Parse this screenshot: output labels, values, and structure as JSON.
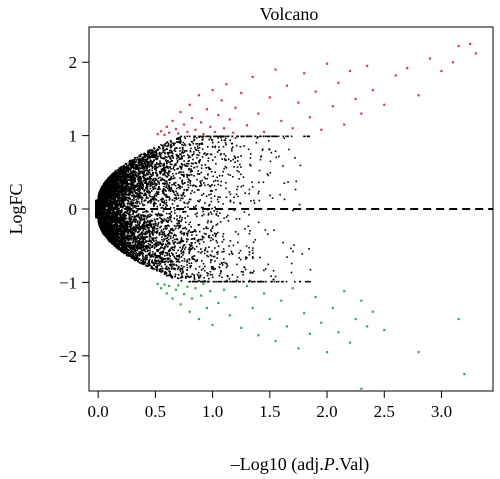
{
  "chart_data": {
    "type": "scatter",
    "title": "Volcano",
    "xlabel_prefix": "–Log10 (adj.",
    "xlabel_italic": "P",
    "xlabel_suffix": ".Val)",
    "ylabel": "LogFC",
    "xlim": [
      -0.08,
      3.45
    ],
    "ylim": [
      -2.48,
      2.48
    ],
    "x_ticks": [
      0.0,
      0.5,
      1.0,
      1.5,
      2.0,
      2.5,
      3.0
    ],
    "x_tick_labels": [
      "0.0",
      "0.5",
      "1.0",
      "1.5",
      "2.0",
      "2.5",
      "3.0"
    ],
    "y_ticks": [
      -2,
      -1,
      0,
      1,
      2
    ],
    "y_tick_labels": [
      "−2",
      "−1",
      "0",
      "1",
      "2"
    ],
    "reference_line": {
      "y": 0,
      "style": "dashed"
    },
    "grid": false,
    "colors": {
      "up": "#e03a3a",
      "down": "#27b34a",
      "ns": "#000000"
    },
    "series": [
      {
        "role": "up",
        "color": "#e03a3a",
        "points": [
          [
            0.52,
            1.02
          ],
          [
            0.55,
            1.06
          ],
          [
            0.58,
            1.01
          ],
          [
            0.6,
            1.12
          ],
          [
            0.62,
            1.04
          ],
          [
            0.65,
            1.2
          ],
          [
            0.68,
            1.09
          ],
          [
            0.7,
            1.03
          ],
          [
            0.72,
            1.32
          ],
          [
            0.75,
            1.15
          ],
          [
            0.78,
            1.05
          ],
          [
            0.8,
            1.42
          ],
          [
            0.82,
            1.24
          ],
          [
            0.85,
            1.08
          ],
          [
            0.88,
            1.55
          ],
          [
            0.9,
            1.18
          ],
          [
            0.92,
            1.02
          ],
          [
            0.95,
            1.36
          ],
          [
            0.98,
            1.12
          ],
          [
            1.0,
            1.62
          ],
          [
            1.02,
            1.05
          ],
          [
            1.05,
            1.28
          ],
          [
            1.08,
            1.48
          ],
          [
            1.1,
            1.1
          ],
          [
            1.12,
            1.7
          ],
          [
            1.15,
            1.22
          ],
          [
            1.18,
            1.04
          ],
          [
            1.2,
            1.38
          ],
          [
            1.25,
            1.58
          ],
          [
            1.3,
            1.14
          ],
          [
            1.35,
            1.8
          ],
          [
            1.4,
            1.3
          ],
          [
            1.45,
            1.05
          ],
          [
            1.5,
            1.52
          ],
          [
            1.55,
            1.9
          ],
          [
            1.6,
            1.2
          ],
          [
            1.65,
            1.68
          ],
          [
            1.7,
            1.1
          ],
          [
            1.75,
            1.45
          ],
          [
            1.8,
            1.85
          ],
          [
            1.85,
            1.25
          ],
          [
            1.9,
            1.6
          ],
          [
            1.95,
            1.08
          ],
          [
            2.0,
            1.98
          ],
          [
            2.05,
            1.4
          ],
          [
            2.1,
            1.72
          ],
          [
            2.15,
            1.15
          ],
          [
            2.2,
            1.88
          ],
          [
            2.25,
            1.5
          ],
          [
            2.3,
            1.3
          ],
          [
            2.35,
            1.95
          ],
          [
            2.4,
            1.62
          ],
          [
            2.5,
            1.42
          ],
          [
            2.6,
            1.82
          ],
          [
            2.7,
            1.92
          ],
          [
            2.8,
            1.55
          ],
          [
            2.9,
            2.05
          ],
          [
            3.0,
            1.88
          ],
          [
            3.1,
            2.0
          ],
          [
            3.15,
            2.22
          ],
          [
            3.25,
            2.25
          ],
          [
            3.3,
            2.12
          ]
        ]
      },
      {
        "role": "down",
        "color": "#27b34a",
        "points": [
          [
            0.52,
            -1.02
          ],
          [
            0.55,
            -1.08
          ],
          [
            0.58,
            -1.03
          ],
          [
            0.6,
            -1.15
          ],
          [
            0.62,
            -1.05
          ],
          [
            0.65,
            -1.22
          ],
          [
            0.68,
            -1.1
          ],
          [
            0.7,
            -1.04
          ],
          [
            0.72,
            -1.3
          ],
          [
            0.75,
            -1.16
          ],
          [
            0.78,
            -1.06
          ],
          [
            0.8,
            -1.4
          ],
          [
            0.82,
            -1.22
          ],
          [
            0.85,
            -1.08
          ],
          [
            0.88,
            -1.5
          ],
          [
            0.9,
            -1.18
          ],
          [
            0.92,
            -1.02
          ],
          [
            0.95,
            -1.35
          ],
          [
            0.98,
            -1.12
          ],
          [
            1.0,
            -1.58
          ],
          [
            1.05,
            -1.28
          ],
          [
            1.1,
            -1.1
          ],
          [
            1.15,
            -1.45
          ],
          [
            1.2,
            -1.2
          ],
          [
            1.25,
            -1.62
          ],
          [
            1.3,
            -1.05
          ],
          [
            1.35,
            -1.35
          ],
          [
            1.4,
            -1.72
          ],
          [
            1.45,
            -1.15
          ],
          [
            1.5,
            -1.5
          ],
          [
            1.55,
            -1.8
          ],
          [
            1.6,
            -1.25
          ],
          [
            1.65,
            -1.6
          ],
          [
            1.7,
            -1.08
          ],
          [
            1.75,
            -1.9
          ],
          [
            1.8,
            -1.42
          ],
          [
            1.85,
            -1.7
          ],
          [
            1.9,
            -1.2
          ],
          [
            1.95,
            -1.55
          ],
          [
            2.0,
            -1.95
          ],
          [
            2.05,
            -1.35
          ],
          [
            2.1,
            -1.68
          ],
          [
            2.15,
            -1.12
          ],
          [
            2.2,
            -1.82
          ],
          [
            2.25,
            -1.5
          ],
          [
            2.3,
            -1.25
          ],
          [
            2.35,
            -1.6
          ],
          [
            2.4,
            -1.4
          ],
          [
            2.5,
            -1.65
          ],
          [
            2.8,
            -1.95
          ],
          [
            3.15,
            -1.5
          ],
          [
            3.2,
            -2.25
          ],
          [
            2.3,
            -2.45
          ]
        ]
      }
    ]
  }
}
